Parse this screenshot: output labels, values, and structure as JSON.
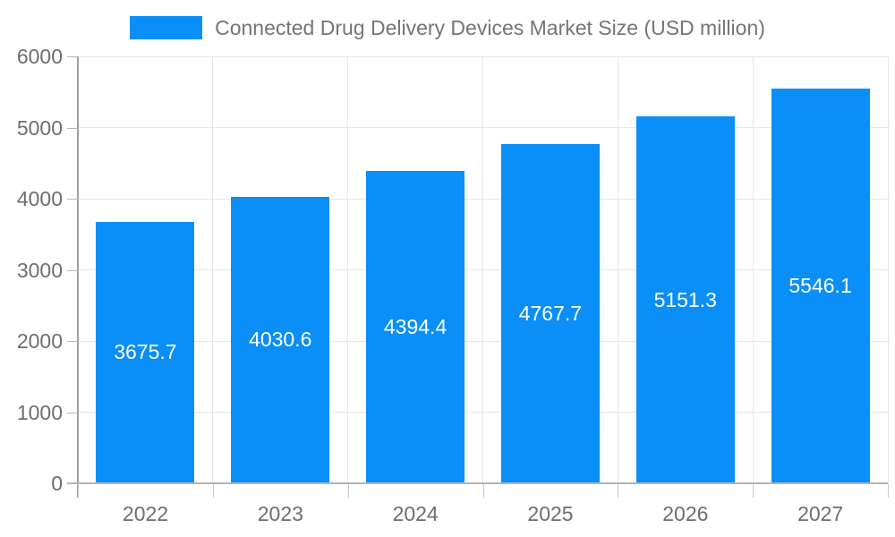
{
  "legend": {
    "swatch_color": "#0a8ef8",
    "label": "Connected Drug Delivery Devices Market Size (USD million)"
  },
  "chart_data": {
    "type": "bar",
    "title": "Connected Drug Delivery Devices Market Size (USD million)",
    "categories": [
      "2022",
      "2023",
      "2024",
      "2025",
      "2026",
      "2027"
    ],
    "values": [
      3675.7,
      4030.6,
      4394.4,
      4767.7,
      5151.3,
      5546.1
    ],
    "series": [
      {
        "name": "Connected Drug Delivery Devices Market Size (USD million)",
        "values": [
          3675.7,
          4030.6,
          4394.4,
          4767.7,
          5151.3,
          5546.1
        ]
      }
    ],
    "xlabel": "",
    "ylabel": "",
    "ylim": [
      0,
      6000
    ],
    "yticks": [
      0,
      1000,
      2000,
      3000,
      4000,
      5000,
      6000
    ],
    "grid": true,
    "legend_position": "top",
    "bar_color": "#0a8ef8",
    "value_label_color": "#ffffff",
    "axis_text_color": "#6e6e6e",
    "title_text_color": "#757575",
    "gridline_color": "#e6e6e6"
  }
}
